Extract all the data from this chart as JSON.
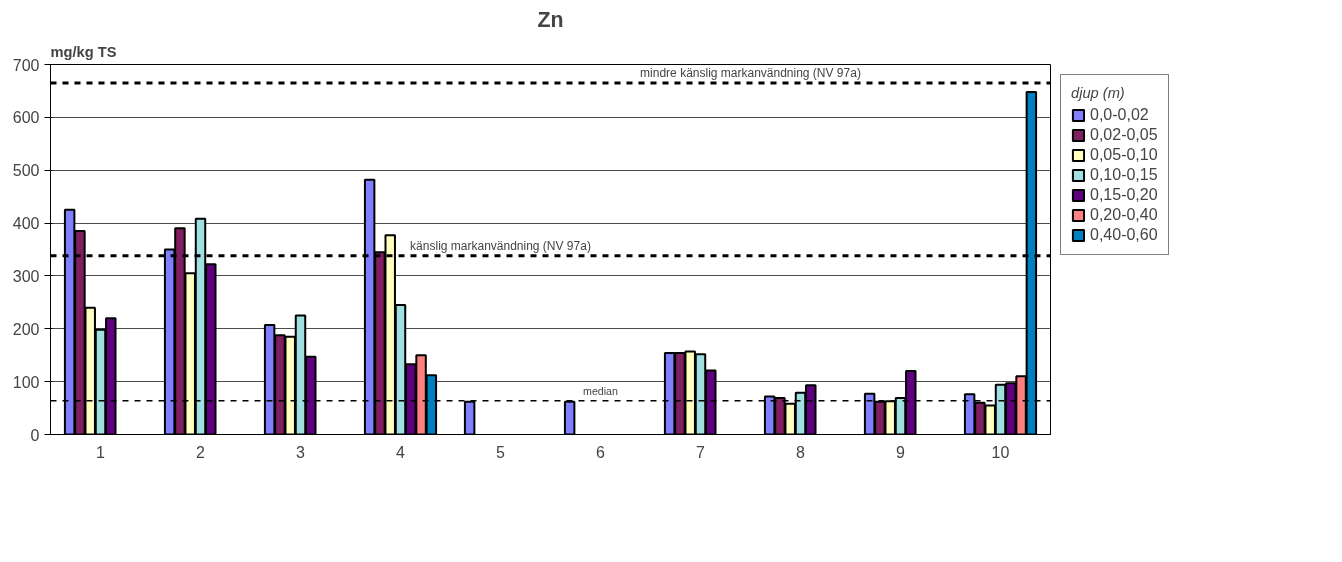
{
  "chart_data": {
    "type": "bar",
    "title": "Zn",
    "ylabel": "mg/kg TS",
    "legend_title": "djup (m)",
    "categories": [
      "1",
      "2",
      "3",
      "4",
      "5",
      "6",
      "7",
      "8",
      "9",
      "10"
    ],
    "series": [
      {
        "name": "0,0-0,02",
        "color": "#8080ff",
        "values": [
          425,
          350,
          207,
          482,
          62,
          62,
          154,
          72,
          77,
          76
        ]
      },
      {
        "name": "0,02-0,05",
        "color": "#802060",
        "values": [
          385,
          390,
          188,
          345,
          null,
          null,
          154,
          69,
          62,
          60
        ]
      },
      {
        "name": "0,05-0,10",
        "color": "#ffffc0",
        "values": [
          240,
          305,
          185,
          377,
          null,
          null,
          157,
          58,
          63,
          55
        ]
      },
      {
        "name": "0,10-0,15",
        "color": "#a0e0e0",
        "values": [
          198,
          408,
          225,
          245,
          null,
          null,
          152,
          79,
          69,
          94
        ]
      },
      {
        "name": "0,15-0,20",
        "color": "#600080",
        "values": [
          220,
          322,
          147,
          133,
          null,
          null,
          121,
          93,
          120,
          97
        ]
      },
      {
        "name": "0,20-0,40",
        "color": "#ff8080",
        "values": [
          null,
          null,
          null,
          150,
          null,
          null,
          null,
          null,
          null,
          110
        ]
      },
      {
        "name": "0,40-0,60",
        "color": "#0080c0",
        "values": [
          null,
          null,
          null,
          112,
          null,
          null,
          null,
          null,
          null,
          648
        ]
      }
    ],
    "ylim": [
      0,
      700
    ],
    "yticks": [
      0,
      100,
      200,
      300,
      400,
      500,
      600,
      700
    ],
    "grid": "y",
    "legend": "right",
    "ref_lines": [
      {
        "axis": "y",
        "value": 665,
        "label": "mindre känslig markanvändning (NV 97a)",
        "line_style": "dashed",
        "color": "#000000"
      },
      {
        "axis": "y",
        "value": 338,
        "label": "känslig markanvändning (NV 97a)",
        "line_style": "dashed",
        "color": "#000000"
      },
      {
        "axis": "y",
        "value": 64,
        "label": "median",
        "line_style": "dashed",
        "color": "#000000"
      }
    ]
  }
}
